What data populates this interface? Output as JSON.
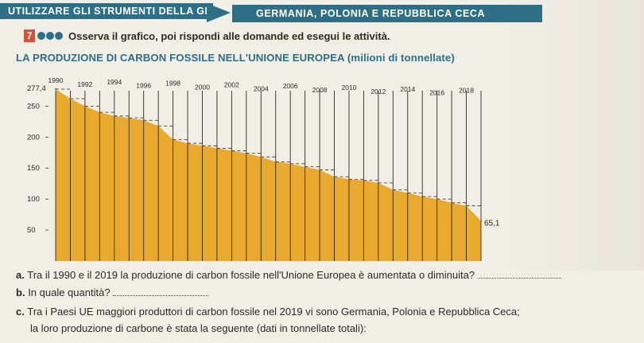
{
  "header": {
    "left_label": "UTILIZZARE GLI STRUMENTI DELLA GEOGRAFIA",
    "right_label": "GERMANIA, POLONIA E REPUBBLICA CECA"
  },
  "exercise": {
    "number": "7",
    "instruction": "Osserva il grafico, poi rispondi alle domande ed esegui le attività."
  },
  "chart_data": {
    "type": "area",
    "title": "LA PRODUZIONE DI CARBON FOSSILE NELL'UNIONE EUROPEA (milioni di tonnellate)",
    "x_tick_labels": [
      "1990",
      "1992",
      "1994",
      "1996",
      "1998",
      "2000",
      "2002",
      "2004",
      "2006",
      "2008",
      "2010",
      "2012",
      "2014",
      "2016",
      "2018"
    ],
    "y_tick_labels": [
      "50",
      "100",
      "150",
      "200",
      "250"
    ],
    "x": [
      1990,
      1991,
      1992,
      1993,
      1994,
      1995,
      1996,
      1997,
      1998,
      1999,
      2000,
      2001,
      2002,
      2003,
      2004,
      2005,
      2006,
      2007,
      2008,
      2009,
      2010,
      2011,
      2012,
      2013,
      2014,
      2015,
      2016,
      2017,
      2018,
      2019
    ],
    "values": [
      277.4,
      262,
      250,
      240,
      234,
      231,
      227,
      218,
      196,
      190,
      186,
      182,
      178,
      174,
      168,
      160,
      157,
      152,
      147,
      136,
      132,
      130,
      126,
      115,
      110,
      104,
      100,
      94,
      89,
      65.1
    ],
    "annotations": [
      "277,4",
      "65,1"
    ],
    "ylim": [
      0,
      280
    ],
    "grid": "dashed vertical lines at each year"
  },
  "color": {
    "accent": "#2f6f86",
    "area": "#e8a92d",
    "exercise_badge": "#d6513a"
  },
  "questions": [
    {
      "letter": "a.",
      "text": "Tra il 1990 e il 2019 la produzione di carbon fossile nell'Unione Europea è aumentata o diminuita?"
    },
    {
      "letter": "b.",
      "text": "In quale quantità?"
    },
    {
      "letter": "c.",
      "text": "Tra i Paesi UE maggiori produttori di carbon fossile nel 2019 vi sono Germania, Polonia e Repubblica Ceca;"
    },
    {
      "letter": "",
      "text": "la loro produzione di carbone è stata la seguente (dati in tonnellate totali):"
    }
  ]
}
